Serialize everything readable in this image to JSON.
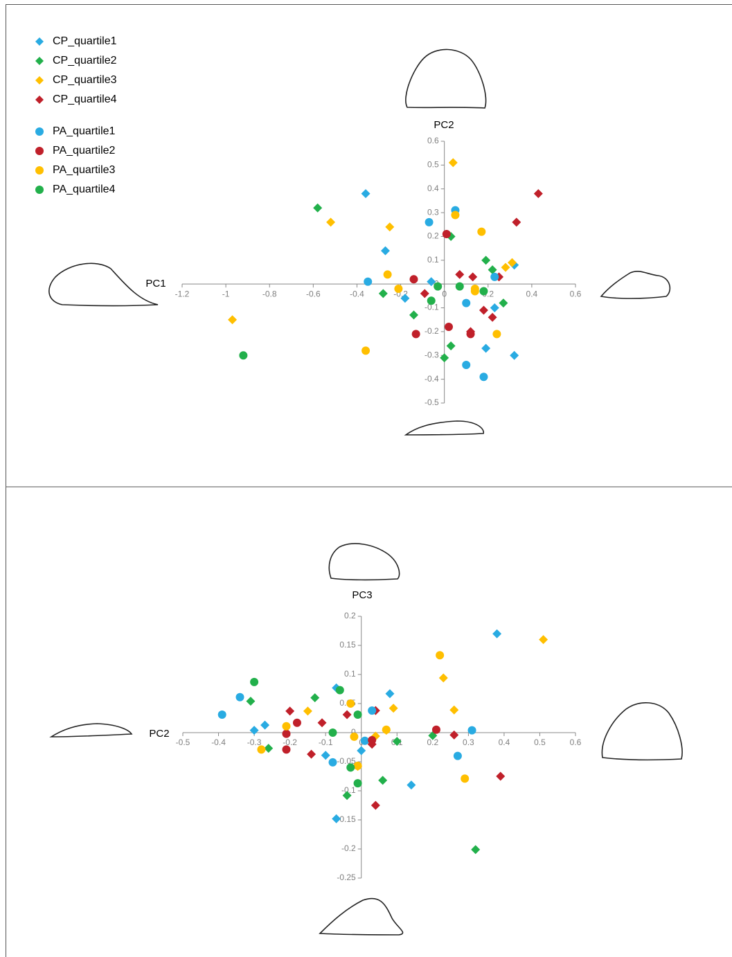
{
  "chart_data": [
    {
      "type": "scatter",
      "x_label": "PC1",
      "y_label": "PC2",
      "xlim": [
        -1.2,
        0.6
      ],
      "xticks": [
        -1.2,
        -1,
        -0.8,
        -0.6,
        -0.4,
        -0.2,
        0,
        0.2,
        0.4,
        0.6
      ],
      "ylim": [
        -0.5,
        0.6
      ],
      "yticks": [
        -0.5,
        -0.4,
        -0.3,
        -0.2,
        -0.1,
        0,
        0.1,
        0.2,
        0.3,
        0.4,
        0.5,
        0.6
      ],
      "legend": "upper left",
      "series": [
        {
          "name": "CP_quartile1",
          "color": "#29abe2",
          "marker": "diamond",
          "x": [
            -0.36,
            -0.27,
            -0.18,
            -0.06,
            0.23,
            0.19,
            0.32,
            0.32
          ],
          "y": [
            0.38,
            0.14,
            -0.06,
            0.01,
            -0.1,
            -0.27,
            -0.3,
            0.08
          ]
        },
        {
          "name": "CP_quartile2",
          "color": "#22b04b",
          "marker": "diamond",
          "x": [
            -0.58,
            -0.28,
            -0.14,
            0.03,
            0.03,
            0.0,
            0.19,
            0.22,
            0.27
          ],
          "y": [
            0.32,
            -0.04,
            -0.13,
            0.2,
            -0.26,
            -0.31,
            0.1,
            0.06,
            -0.08
          ]
        },
        {
          "name": "CP_quartile3",
          "color": "#ffbf00",
          "marker": "diamond",
          "x": [
            -0.97,
            -0.52,
            -0.25,
            0.04,
            0.28,
            0.31
          ],
          "y": [
            -0.15,
            0.26,
            0.24,
            0.51,
            0.07,
            0.09
          ]
        },
        {
          "name": "CP_quartile4",
          "color": "#c0202a",
          "marker": "diamond",
          "x": [
            0.43,
            0.33,
            -0.09,
            0.07,
            0.13,
            0.18,
            0.12,
            0.22,
            0.25
          ],
          "y": [
            0.38,
            0.26,
            -0.04,
            0.04,
            0.03,
            -0.11,
            -0.2,
            -0.14,
            0.03
          ]
        },
        {
          "name": "PA_quartile1",
          "color": "#29abe2",
          "marker": "circle",
          "x": [
            -0.35,
            -0.07,
            0.05,
            0.1,
            0.1,
            0.18,
            0.23
          ],
          "y": [
            0.01,
            0.26,
            0.31,
            -0.08,
            -0.34,
            -0.39,
            0.03
          ]
        },
        {
          "name": "PA_quartile2",
          "color": "#c0202a",
          "marker": "circle",
          "x": [
            -0.14,
            0.01,
            0.02,
            -0.13,
            0.12
          ],
          "y": [
            0.02,
            0.21,
            -0.18,
            -0.21,
            -0.21
          ]
        },
        {
          "name": "PA_quartile3",
          "color": "#ffbf00",
          "marker": "circle",
          "x": [
            -0.36,
            -0.26,
            -0.21,
            0.05,
            0.17,
            0.14,
            0.14,
            0.24
          ],
          "y": [
            -0.28,
            0.04,
            -0.02,
            0.29,
            0.22,
            -0.02,
            -0.03,
            -0.21
          ]
        },
        {
          "name": "PA_quartile4",
          "color": "#22b04b",
          "marker": "circle",
          "x": [
            -0.92,
            -0.06,
            -0.03,
            0.07,
            0.18
          ],
          "y": [
            -0.3,
            -0.07,
            -0.01,
            -0.01,
            -0.03
          ]
        }
      ]
    },
    {
      "type": "scatter",
      "x_label": "PC2",
      "y_label": "PC3",
      "xlim": [
        -0.5,
        0.6
      ],
      "xticks": [
        -0.5,
        -0.4,
        -0.3,
        -0.2,
        -0.1,
        0,
        0.1,
        0.2,
        0.3,
        0.4,
        0.5,
        0.6
      ],
      "ylim": [
        -0.25,
        0.2
      ],
      "yticks": [
        -0.25,
        -0.2,
        -0.15,
        -0.1,
        -0.05,
        0,
        0.05,
        0.1,
        0.15,
        0.2
      ],
      "series": [
        {
          "color": "#29abe2",
          "marker": "diamond",
          "x": [
            0.38,
            0.08,
            -0.07,
            -0.27,
            -0.3,
            -0.1,
            0.0,
            0.14,
            -0.07
          ],
          "y": [
            0.17,
            0.067,
            0.077,
            0.013,
            0.004,
            -0.039,
            -0.031,
            -0.09,
            -0.148
          ]
        },
        {
          "color": "#22b04b",
          "marker": "diamond",
          "x": [
            -0.31,
            -0.13,
            -0.26,
            0.1,
            0.2,
            0.06,
            -0.04,
            0.32
          ],
          "y": [
            0.054,
            0.06,
            -0.027,
            -0.015,
            -0.005,
            -0.082,
            -0.108,
            -0.201
          ]
        },
        {
          "color": "#ffbf00",
          "marker": "diamond",
          "x": [
            0.51,
            0.23,
            0.26,
            0.09,
            -0.15,
            0.04,
            -0.01,
            0.07
          ],
          "y": [
            0.16,
            0.094,
            0.039,
            0.042,
            0.037,
            -0.006,
            -0.058,
            0.004
          ]
        },
        {
          "color": "#c0202a",
          "marker": "diamond",
          "x": [
            -0.2,
            -0.04,
            0.04,
            -0.11,
            -0.14,
            0.03,
            0.26,
            0.39,
            0.04
          ],
          "y": [
            0.037,
            0.031,
            0.038,
            0.017,
            -0.037,
            -0.02,
            -0.004,
            -0.075,
            -0.125
          ]
        },
        {
          "color": "#29abe2",
          "marker": "circle",
          "x": [
            -0.39,
            -0.34,
            0.03,
            0.01,
            -0.08,
            0.27,
            0.31
          ],
          "y": [
            0.031,
            0.061,
            0.038,
            -0.014,
            -0.051,
            -0.04,
            0.004
          ]
        },
        {
          "color": "#c0202a",
          "marker": "circle",
          "x": [
            -0.21,
            -0.21,
            -0.18,
            0.03,
            0.21
          ],
          "y": [
            -0.002,
            -0.029,
            0.017,
            -0.013,
            0.005
          ]
        },
        {
          "color": "#ffbf00",
          "marker": "circle",
          "x": [
            0.22,
            -0.03,
            -0.21,
            -0.28,
            -0.02,
            0.07,
            0.29,
            -0.01
          ],
          "y": [
            0.133,
            0.05,
            0.011,
            -0.029,
            -0.007,
            0.005,
            -0.079,
            -0.057
          ]
        },
        {
          "color": "#22b04b",
          "marker": "circle",
          "x": [
            -0.3,
            -0.06,
            -0.01,
            -0.08,
            -0.03,
            -0.01
          ],
          "y": [
            0.087,
            0.073,
            0.031,
            0.0,
            -0.06,
            -0.087
          ]
        }
      ]
    }
  ]
}
